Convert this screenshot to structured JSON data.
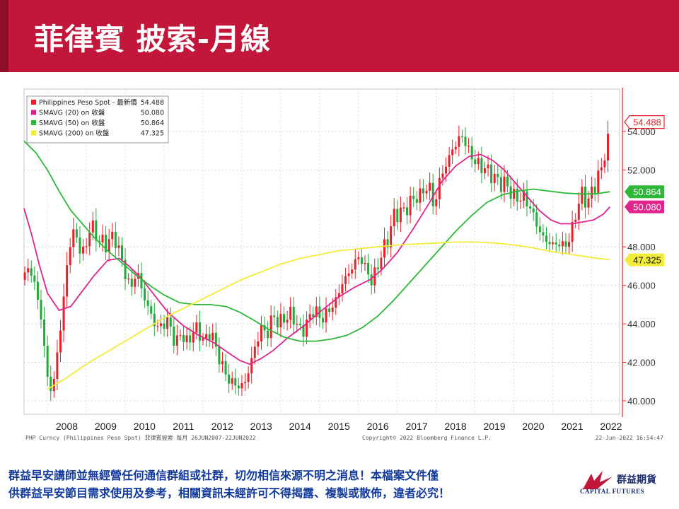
{
  "page": {
    "title": "菲律賓 披索-月線"
  },
  "legend": [
    {
      "label": "Philippines Peso Spot - 最新價",
      "value": "54.488",
      "color": "#e8202a"
    },
    {
      "label": "SMAVG (20)  on 收盤",
      "value": "50.080",
      "color": "#e0248c"
    },
    {
      "label": "SMAVG (50)  on 收盤",
      "value": "50.864",
      "color": "#2eb83a"
    },
    {
      "label": "SMAVG (200)  on 收盤",
      "value": "47.325",
      "color": "#f2ec3a"
    }
  ],
  "chart_meta": {
    "source_left": "PHP Curncy (Philippines Peso Spot)  菲律賓披索   每月 26JUN2007-22JUN2022",
    "source_center": "Copyright© 2022 Bloomberg Finance L.P.",
    "source_right": "22-Jun-2022 16:54:47"
  },
  "chart_data": {
    "type": "candlestick",
    "x_label_years": [
      "2008",
      "2009",
      "2010",
      "2011",
      "2012",
      "2013",
      "2014",
      "2015",
      "2016",
      "2017",
      "2018",
      "2019",
      "2020",
      "2021",
      "2022"
    ],
    "y_ticks": [
      "40.000",
      "42.000",
      "44.000",
      "46.000",
      "48.000",
      "52.000",
      "54.000"
    ],
    "ylim": [
      39.3,
      56.2
    ],
    "grid": true,
    "price_tags": [
      {
        "text": "54.488",
        "value": 54.488,
        "color": "#e8202a",
        "style": "outline"
      },
      {
        "text": "50.864",
        "value": 50.864,
        "color": "#2eb83a",
        "style": "fill"
      },
      {
        "text": "50.080",
        "value": 50.08,
        "color": "#e0248c",
        "style": "fill"
      },
      {
        "text": "47.325",
        "value": 47.325,
        "color": "#f2ec3a",
        "style": "fill"
      }
    ],
    "anchors": [
      [
        2007.42,
        46.5
      ],
      [
        2007.55,
        47.0
      ],
      [
        2007.7,
        45.8
      ],
      [
        2007.85,
        44.2
      ],
      [
        2008.0,
        41.2
      ],
      [
        2008.12,
        40.4
      ],
      [
        2008.25,
        42.3
      ],
      [
        2008.4,
        45.0
      ],
      [
        2008.5,
        46.8
      ],
      [
        2008.62,
        48.9
      ],
      [
        2008.8,
        48.2
      ],
      [
        2008.95,
        47.5
      ],
      [
        2009.1,
        49.2
      ],
      [
        2009.3,
        48.4
      ],
      [
        2009.5,
        48.1
      ],
      [
        2009.7,
        48.6
      ],
      [
        2009.85,
        47.8
      ],
      [
        2010.0,
        46.6
      ],
      [
        2010.15,
        45.8
      ],
      [
        2010.3,
        46.8
      ],
      [
        2010.45,
        45.6
      ],
      [
        2010.6,
        44.8
      ],
      [
        2010.8,
        43.8
      ],
      [
        2010.95,
        43.9
      ],
      [
        2011.1,
        44.2
      ],
      [
        2011.3,
        42.9
      ],
      [
        2011.45,
        43.6
      ],
      [
        2011.6,
        42.9
      ],
      [
        2011.75,
        43.7
      ],
      [
        2011.9,
        43.6
      ],
      [
        2012.05,
        43.0
      ],
      [
        2012.2,
        43.7
      ],
      [
        2012.35,
        42.6
      ],
      [
        2012.5,
        41.8
      ],
      [
        2012.65,
        41.1
      ],
      [
        2012.8,
        40.9
      ],
      [
        2012.95,
        40.7
      ],
      [
        2013.1,
        41.0
      ],
      [
        2013.3,
        42.5
      ],
      [
        2013.5,
        43.8
      ],
      [
        2013.65,
        43.4
      ],
      [
        2013.8,
        44.5
      ],
      [
        2013.95,
        44.0
      ],
      [
        2014.1,
        44.3
      ],
      [
        2014.3,
        44.5
      ],
      [
        2014.5,
        43.6
      ],
      [
        2014.65,
        43.9
      ],
      [
        2014.85,
        44.8
      ],
      [
        2015.05,
        44.2
      ],
      [
        2015.2,
        44.6
      ],
      [
        2015.4,
        45.1
      ],
      [
        2015.6,
        46.2
      ],
      [
        2015.75,
        46.6
      ],
      [
        2015.9,
        47.2
      ],
      [
        2016.05,
        47.5
      ],
      [
        2016.2,
        46.8
      ],
      [
        2016.35,
        46.2
      ],
      [
        2016.5,
        47.0
      ],
      [
        2016.6,
        47.7
      ],
      [
        2016.75,
        48.3
      ],
      [
        2016.9,
        49.6
      ],
      [
        2017.05,
        49.8
      ],
      [
        2017.2,
        49.9
      ],
      [
        2017.4,
        50.5
      ],
      [
        2017.55,
        50.6
      ],
      [
        2017.7,
        51.0
      ],
      [
        2017.85,
        51.1
      ],
      [
        2017.95,
        49.9
      ],
      [
        2018.1,
        51.6
      ],
      [
        2018.25,
        52.2
      ],
      [
        2018.4,
        53.0
      ],
      [
        2018.55,
        53.5
      ],
      [
        2018.7,
        53.8
      ],
      [
        2018.82,
        53.0
      ],
      [
        2018.95,
        52.6
      ],
      [
        2019.1,
        52.2
      ],
      [
        2019.25,
        52.1
      ],
      [
        2019.45,
        51.7
      ],
      [
        2019.65,
        51.3
      ],
      [
        2019.8,
        51.3
      ],
      [
        2019.95,
        50.7
      ],
      [
        2020.1,
        50.5
      ],
      [
        2020.25,
        50.6
      ],
      [
        2020.4,
        50.1
      ],
      [
        2020.55,
        49.4
      ],
      [
        2020.7,
        48.6
      ],
      [
        2020.85,
        48.3
      ],
      [
        2021.0,
        48.1
      ],
      [
        2021.15,
        48.2
      ],
      [
        2021.3,
        48.0
      ],
      [
        2021.45,
        48.5
      ],
      [
        2021.6,
        49.8
      ],
      [
        2021.75,
        50.8
      ],
      [
        2021.9,
        50.2
      ],
      [
        2022.0,
        50.9
      ],
      [
        2022.15,
        51.5
      ],
      [
        2022.3,
        52.4
      ],
      [
        2022.47,
        54.488
      ]
    ],
    "series": [
      {
        "name": "SMAVG (20)  on 收盤",
        "color": "#e0248c",
        "points": [
          [
            2007.4,
            50.0
          ],
          [
            2007.6,
            48.6
          ],
          [
            2007.8,
            47.0
          ],
          [
            2008.0,
            45.6
          ],
          [
            2008.3,
            44.7
          ],
          [
            2008.6,
            44.9
          ],
          [
            2008.9,
            45.7
          ],
          [
            2009.2,
            46.5
          ],
          [
            2009.55,
            47.3
          ],
          [
            2009.85,
            47.4
          ],
          [
            2010.1,
            47.0
          ],
          [
            2010.4,
            46.4
          ],
          [
            2010.75,
            45.5
          ],
          [
            2011.1,
            44.6
          ],
          [
            2011.5,
            43.9
          ],
          [
            2011.9,
            43.4
          ],
          [
            2012.3,
            43.0
          ],
          [
            2012.65,
            42.5
          ],
          [
            2012.95,
            42.1
          ],
          [
            2013.2,
            41.9
          ],
          [
            2013.5,
            42.2
          ],
          [
            2013.8,
            42.6
          ],
          [
            2014.2,
            43.3
          ],
          [
            2014.6,
            43.9
          ],
          [
            2015.0,
            44.6
          ],
          [
            2015.5,
            45.4
          ],
          [
            2015.9,
            45.9
          ],
          [
            2016.3,
            46.3
          ],
          [
            2016.6,
            46.8
          ],
          [
            2017.0,
            47.7
          ],
          [
            2017.4,
            48.9
          ],
          [
            2017.8,
            50.2
          ],
          [
            2018.15,
            51.4
          ],
          [
            2018.5,
            52.2
          ],
          [
            2018.85,
            52.7
          ],
          [
            2019.15,
            52.8
          ],
          [
            2019.45,
            52.5
          ],
          [
            2019.75,
            52.0
          ],
          [
            2020.05,
            51.3
          ],
          [
            2020.35,
            50.6
          ],
          [
            2020.65,
            49.9
          ],
          [
            2020.95,
            49.4
          ],
          [
            2021.2,
            49.2
          ],
          [
            2021.5,
            49.2
          ],
          [
            2021.8,
            49.3
          ],
          [
            2022.05,
            49.4
          ],
          [
            2022.3,
            49.7
          ],
          [
            2022.47,
            50.08
          ]
        ]
      },
      {
        "name": "SMAVG (50)  on 收盤",
        "color": "#2eb83a",
        "points": [
          [
            2007.4,
            53.5
          ],
          [
            2007.7,
            52.9
          ],
          [
            2008.0,
            52.0
          ],
          [
            2008.3,
            50.9
          ],
          [
            2008.6,
            49.9
          ],
          [
            2008.9,
            49.2
          ],
          [
            2009.2,
            48.5
          ],
          [
            2009.55,
            47.8
          ],
          [
            2009.9,
            47.2
          ],
          [
            2010.3,
            46.5
          ],
          [
            2010.7,
            45.9
          ],
          [
            2011.0,
            45.5
          ],
          [
            2011.4,
            45.1
          ],
          [
            2011.8,
            45.0
          ],
          [
            2012.2,
            45.0
          ],
          [
            2012.6,
            44.9
          ],
          [
            2012.95,
            44.6
          ],
          [
            2013.3,
            44.2
          ],
          [
            2013.7,
            43.7
          ],
          [
            2014.1,
            43.3
          ],
          [
            2014.5,
            43.1
          ],
          [
            2014.9,
            43.1
          ],
          [
            2015.3,
            43.2
          ],
          [
            2015.7,
            43.4
          ],
          [
            2016.1,
            43.8
          ],
          [
            2016.5,
            44.4
          ],
          [
            2016.9,
            45.2
          ],
          [
            2017.3,
            46.1
          ],
          [
            2017.7,
            47.0
          ],
          [
            2018.1,
            47.9
          ],
          [
            2018.5,
            48.8
          ],
          [
            2018.9,
            49.6
          ],
          [
            2019.3,
            50.3
          ],
          [
            2019.7,
            50.7
          ],
          [
            2020.1,
            50.9
          ],
          [
            2020.5,
            51.0
          ],
          [
            2020.9,
            50.9
          ],
          [
            2021.3,
            50.8
          ],
          [
            2021.7,
            50.75
          ],
          [
            2022.1,
            50.75
          ],
          [
            2022.47,
            50.864
          ]
        ]
      },
      {
        "name": "SMAVG (200)  on 收盤",
        "color": "#f2ec3a",
        "points": [
          [
            2008.0,
            40.6
          ],
          [
            2008.5,
            41.2
          ],
          [
            2009.0,
            41.9
          ],
          [
            2009.5,
            42.5
          ],
          [
            2010.0,
            43.1
          ],
          [
            2010.5,
            43.7
          ],
          [
            2011.0,
            44.3
          ],
          [
            2011.5,
            44.8
          ],
          [
            2012.0,
            45.3
          ],
          [
            2012.5,
            45.8
          ],
          [
            2013.0,
            46.3
          ],
          [
            2013.5,
            46.7
          ],
          [
            2014.0,
            47.1
          ],
          [
            2014.5,
            47.4
          ],
          [
            2015.0,
            47.6
          ],
          [
            2015.5,
            47.8
          ],
          [
            2016.0,
            47.9
          ],
          [
            2016.5,
            48.0
          ],
          [
            2017.0,
            48.1
          ],
          [
            2017.5,
            48.15
          ],
          [
            2018.0,
            48.2
          ],
          [
            2018.5,
            48.25
          ],
          [
            2019.0,
            48.25
          ],
          [
            2019.5,
            48.2
          ],
          [
            2020.0,
            48.1
          ],
          [
            2020.5,
            47.95
          ],
          [
            2021.0,
            47.75
          ],
          [
            2021.5,
            47.6
          ],
          [
            2022.0,
            47.45
          ],
          [
            2022.47,
            47.325
          ]
        ]
      }
    ]
  },
  "footer": {
    "line1": "群益早安講師並無經營任何通信群組或社群，切勿相信來源不明之消息！本檔案文件僅",
    "line2": "供群益早安節目需求使用及參考，相關資訊未經許可不得揭露、複製或散佈，違者必究！"
  },
  "logo": {
    "cn": "群益期貨",
    "en": "CAPITAL FUTURES",
    "color": "#c2163b"
  }
}
